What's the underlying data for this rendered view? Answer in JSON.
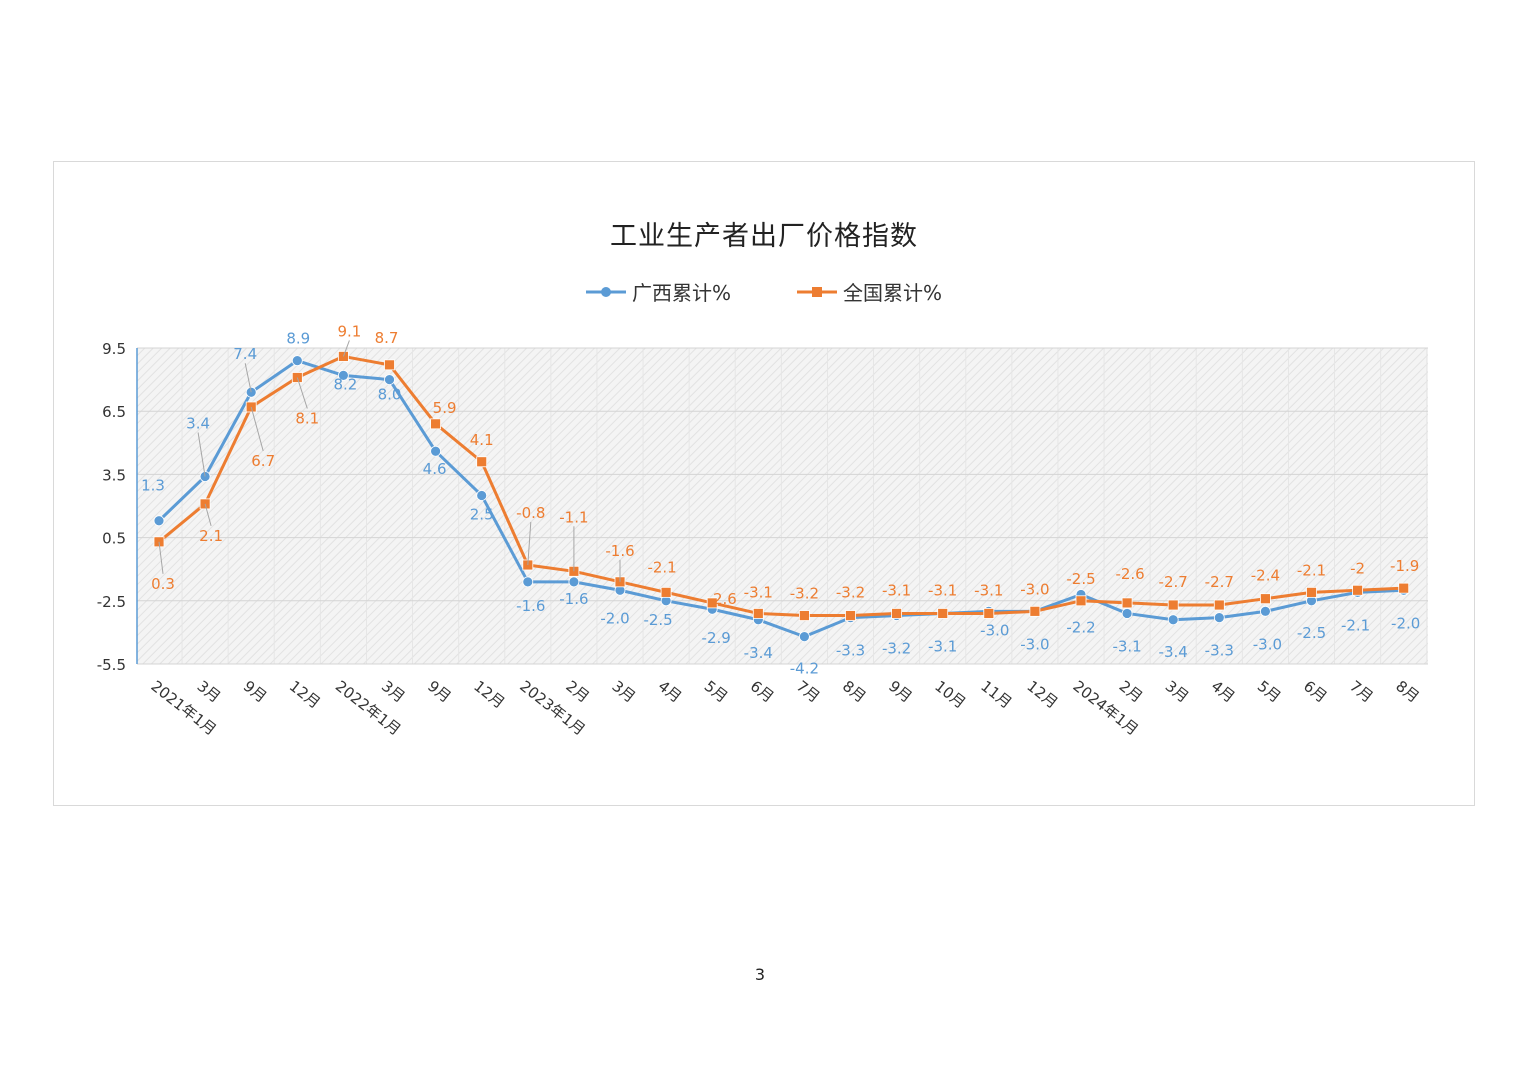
{
  "page": {
    "number": "3"
  },
  "chart_data": {
    "type": "line",
    "title": "工业生产者出厂价格指数",
    "xlabel": "",
    "ylabel": "",
    "ylim": [
      -5.5,
      9.5
    ],
    "yticks": [
      9.5,
      6.5,
      3.5,
      0.5,
      -2.5,
      -5.5
    ],
    "grid": true,
    "legend_position": "top-center",
    "categories": [
      "2021年1月",
      "3月",
      "9月",
      "12月",
      "2022年1月",
      "3月",
      "9月",
      "12月",
      "2023年1月",
      "2月",
      "3月",
      "4月",
      "5月",
      "6月",
      "7月",
      "8月",
      "9月",
      "10月",
      "11月",
      "12月",
      "2024年1月",
      "2月",
      "3月",
      "4月",
      "5月",
      "6月",
      "7月",
      "8月"
    ],
    "series": [
      {
        "name": "广西累计%",
        "color": "#5b9bd5",
        "marker": "circle",
        "values": [
          1.3,
          3.4,
          7.4,
          8.9,
          8.2,
          8.0,
          4.6,
          2.5,
          -1.6,
          -1.6,
          -2.0,
          -2.5,
          -2.9,
          -3.4,
          -4.2,
          -3.3,
          -3.2,
          -3.1,
          -3.0,
          -3.0,
          -2.2,
          -3.1,
          -3.4,
          -3.3,
          -3.0,
          -2.5,
          -2.1,
          -2.0
        ],
        "labels": [
          "1.3",
          "3.4",
          "7.4",
          "8.9",
          "8.2",
          "8.0",
          "4.6",
          "2.5",
          "-1.6",
          "-1.6",
          "-2.0",
          "-2.5",
          "-2.9",
          "-3.4",
          "-4.2",
          "-3.3",
          "-3.2",
          "-3.1",
          "-3.0",
          "-3.0",
          "-2.2",
          "-3.1",
          "-3.4",
          "-3.3",
          "-3.0",
          "-2.5",
          "-2.1",
          "-2.0"
        ]
      },
      {
        "name": "全国累计%",
        "color": "#ed7d31",
        "marker": "square",
        "values": [
          0.3,
          2.1,
          6.7,
          8.1,
          9.1,
          8.7,
          5.9,
          4.1,
          -0.8,
          -1.1,
          -1.6,
          -2.1,
          -2.6,
          -3.1,
          -3.2,
          -3.2,
          -3.1,
          -3.1,
          -3.1,
          -3.0,
          -2.5,
          -2.6,
          -2.7,
          -2.7,
          -2.4,
          -2.1,
          -2.0,
          -1.9
        ],
        "labels": [
          "0.3",
          "2.1",
          "6.7",
          "8.1",
          "9.1",
          "8.7",
          "5.9",
          "4.1",
          "-0.8",
          "-1.1",
          "-1.6",
          "-2.1",
          "-2.6",
          "-3.1",
          "-3.2",
          "-3.2",
          "-3.1",
          "-3.1",
          "-3.1",
          "-3.0",
          "-2.5",
          "-2.6",
          "-2.7",
          "-2.7",
          "-2.4",
          "-2.1",
          "-2",
          "-1.9"
        ]
      }
    ]
  }
}
